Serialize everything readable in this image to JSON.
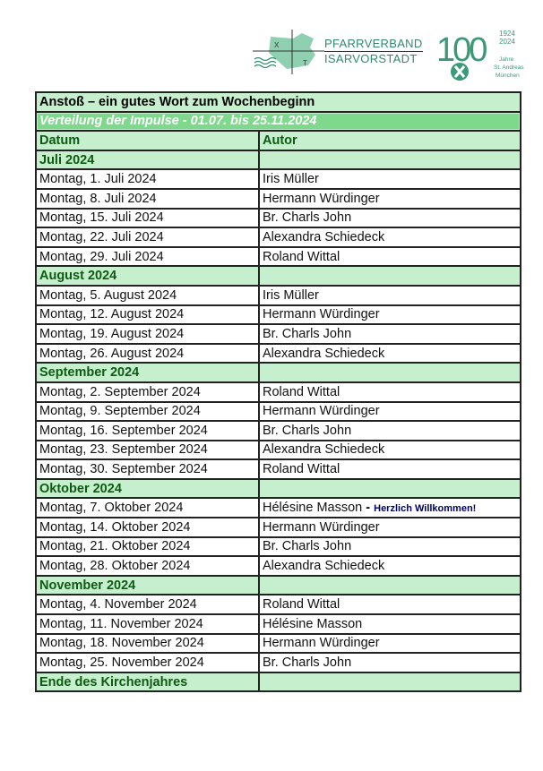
{
  "logos": {
    "pfarrverband": {
      "line1": "PFARRVERBAND",
      "line2": "ISARVORSTADT",
      "map_letters": [
        "X",
        "T"
      ]
    },
    "jubilee": {
      "number": "100",
      "years": "1924 2024",
      "caption": "Jahre St. Andreas München",
      "color": "#3a9a76"
    }
  },
  "table": {
    "title": "Anstoß – ein gutes Wort zum Wochenbeginn",
    "subtitle": "Verteilung der Impulse - 01.07. bis 25.11.2024",
    "headers": [
      "Datum",
      "Autor"
    ],
    "months": [
      {
        "label": "Juli 2024",
        "rows": [
          {
            "date": "Montag, 1. Juli 2024",
            "author": "Iris Müller"
          },
          {
            "date": "Montag, 8. Juli 2024",
            "author": "Hermann Würdinger"
          },
          {
            "date": "Montag, 15. Juli 2024",
            "author": "Br. Charls John"
          },
          {
            "date": "Montag, 22. Juli 2024",
            "author": "Alexandra Schiedeck"
          },
          {
            "date": "Montag, 29. Juli 2024",
            "author": "Roland Wittal"
          }
        ]
      },
      {
        "label": "August 2024",
        "rows": [
          {
            "date": "Montag, 5. August 2024",
            "author": "Iris Müller"
          },
          {
            "date": "Montag, 12. August 2024",
            "author": "Hermann Würdinger"
          },
          {
            "date": "Montag, 19. August 2024",
            "author": "Br. Charls John"
          },
          {
            "date": "Montag, 26. August 2024",
            "author": "Alexandra Schiedeck"
          }
        ]
      },
      {
        "label": "September 2024",
        "rows": [
          {
            "date": "Montag, 2. September 2024",
            "author": "Roland Wittal"
          },
          {
            "date": "Montag, 9. September 2024",
            "author": "Hermann Würdinger"
          },
          {
            "date": "Montag, 16. September 2024",
            "author": "Br. Charls John"
          },
          {
            "date": "Montag, 23. September 2024",
            "author": "Alexandra Schiedeck"
          },
          {
            "date": "Montag, 30. September 2024",
            "author": "Roland Wittal"
          }
        ]
      },
      {
        "label": "Oktober 2024",
        "rows": [
          {
            "date": "Montag, 7. Oktober 2024",
            "author": "Hélésine Masson",
            "note": "Herzlich Willkommen!"
          },
          {
            "date": "Montag, 14. Oktober 2024",
            "author": "Hermann Würdinger"
          },
          {
            "date": "Montag, 21. Oktober 2024",
            "author": "Br. Charls John"
          },
          {
            "date": "Montag, 28. Oktober 2024",
            "author": "Alexandra Schiedeck"
          }
        ]
      },
      {
        "label": "November 2024",
        "rows": [
          {
            "date": "Montag, 4. November 2024",
            "author": "Roland Wittal"
          },
          {
            "date": "Montag, 11. November 2024",
            "author": "Hélésine Masson"
          },
          {
            "date": "Montag, 18. November 2024",
            "author": "Hermann Würdinger"
          },
          {
            "date": "Montag, 25. November 2024",
            "author": "Br. Charls John"
          }
        ]
      }
    ],
    "footer": "Ende des Kirchenjahres",
    "colors": {
      "header_fill": "#c6efce",
      "subtitle_fill": "#7fd98d",
      "month_text": "#0e5a12"
    }
  }
}
